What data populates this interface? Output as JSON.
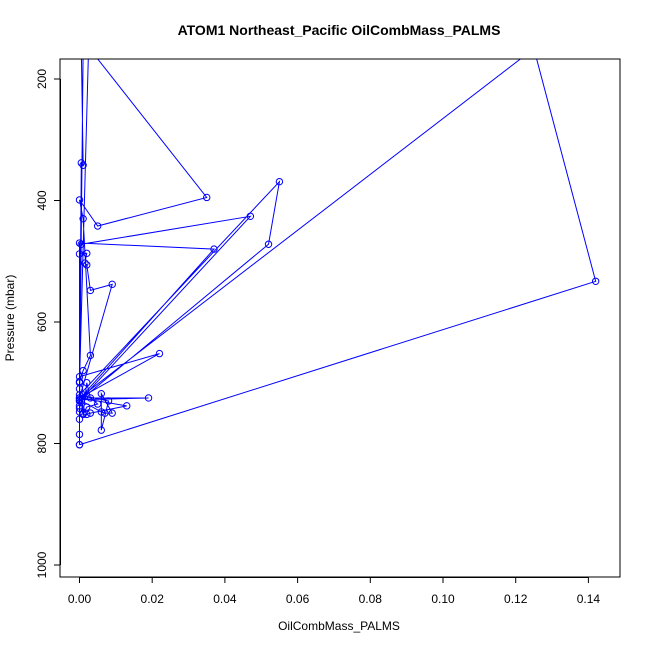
{
  "chart_data": {
    "type": "line",
    "title": "ATOM1 Northeast_Pacific OilCombMass_PALMS",
    "xlabel": "OilCombMass_PALMS",
    "ylabel": "Pressure (mbar)",
    "xlim": [
      -0.005,
      0.148
    ],
    "ylim": [
      1000,
      200
    ],
    "y_reversed": true,
    "grid": false,
    "x_ticks": [
      0.0,
      0.02,
      0.04,
      0.06,
      0.08,
      0.1,
      0.12,
      0.14
    ],
    "x_tick_labels": [
      "0.00",
      "0.02",
      "0.04",
      "0.06",
      "0.08",
      "0.10",
      "0.12",
      "0.14"
    ],
    "y_ticks": [
      200,
      400,
      600,
      800,
      1000
    ],
    "y_tick_labels": [
      "200",
      "400",
      "600",
      "800",
      "1000"
    ],
    "series": [
      {
        "color": "#0000ff",
        "marker": "open-circle",
        "points": [
          [
            0.0,
            802
          ],
          [
            0.142,
            533
          ],
          [
            0.125,
            150
          ],
          [
            0.0,
            725
          ],
          [
            0.0,
            710
          ],
          [
            0.0005,
            730
          ],
          [
            0.001,
            750
          ],
          [
            0.002,
            700
          ],
          [
            0.003,
            725
          ],
          [
            0.005,
            735
          ],
          [
            0.002,
            740
          ],
          [
            0.001,
            752
          ],
          [
            0.002,
            752
          ],
          [
            0.003,
            750
          ],
          [
            0.013,
            738
          ],
          [
            0.0,
            725
          ],
          [
            0.019,
            725
          ],
          [
            0.0,
            728
          ],
          [
            0.006,
            748
          ],
          [
            0.007,
            750
          ],
          [
            0.009,
            750
          ],
          [
            0.006,
            718
          ],
          [
            0.006,
            778
          ],
          [
            0.008,
            730
          ],
          [
            0.0,
            720
          ],
          [
            0.055,
            369
          ],
          [
            0.052,
            472
          ],
          [
            0.0,
            730
          ],
          [
            0.047,
            426
          ],
          [
            0.0005,
            472
          ],
          [
            0.0,
            488
          ],
          [
            0.002,
            487
          ],
          [
            0.0015,
            503
          ],
          [
            0.002,
            506
          ],
          [
            0.003,
            548
          ],
          [
            0.009,
            538
          ],
          [
            0.0,
            725
          ],
          [
            0.022,
            652
          ],
          [
            0.0,
            690
          ],
          [
            0.0,
            730
          ],
          [
            0.0,
            698
          ],
          [
            0.001,
            680
          ],
          [
            0.003,
            655
          ],
          [
            0.001,
            430
          ],
          [
            0.0,
            399
          ],
          [
            0.005,
            442
          ],
          [
            0.035,
            395
          ],
          [
            0.0025,
            148
          ],
          [
            0.0,
            700
          ],
          [
            0.0005,
            338
          ],
          [
            0.001,
            342
          ],
          [
            0.0005,
            150
          ],
          [
            0.001,
            150
          ],
          [
            0.0,
            742
          ],
          [
            0.001,
            720
          ],
          [
            0.037,
            480
          ],
          [
            0.0,
            470
          ],
          [
            0.0,
            738
          ],
          [
            0.0,
            748
          ],
          [
            0.0,
            760
          ],
          [
            0.0,
            785
          ],
          [
            0.0,
            802
          ]
        ]
      }
    ]
  }
}
